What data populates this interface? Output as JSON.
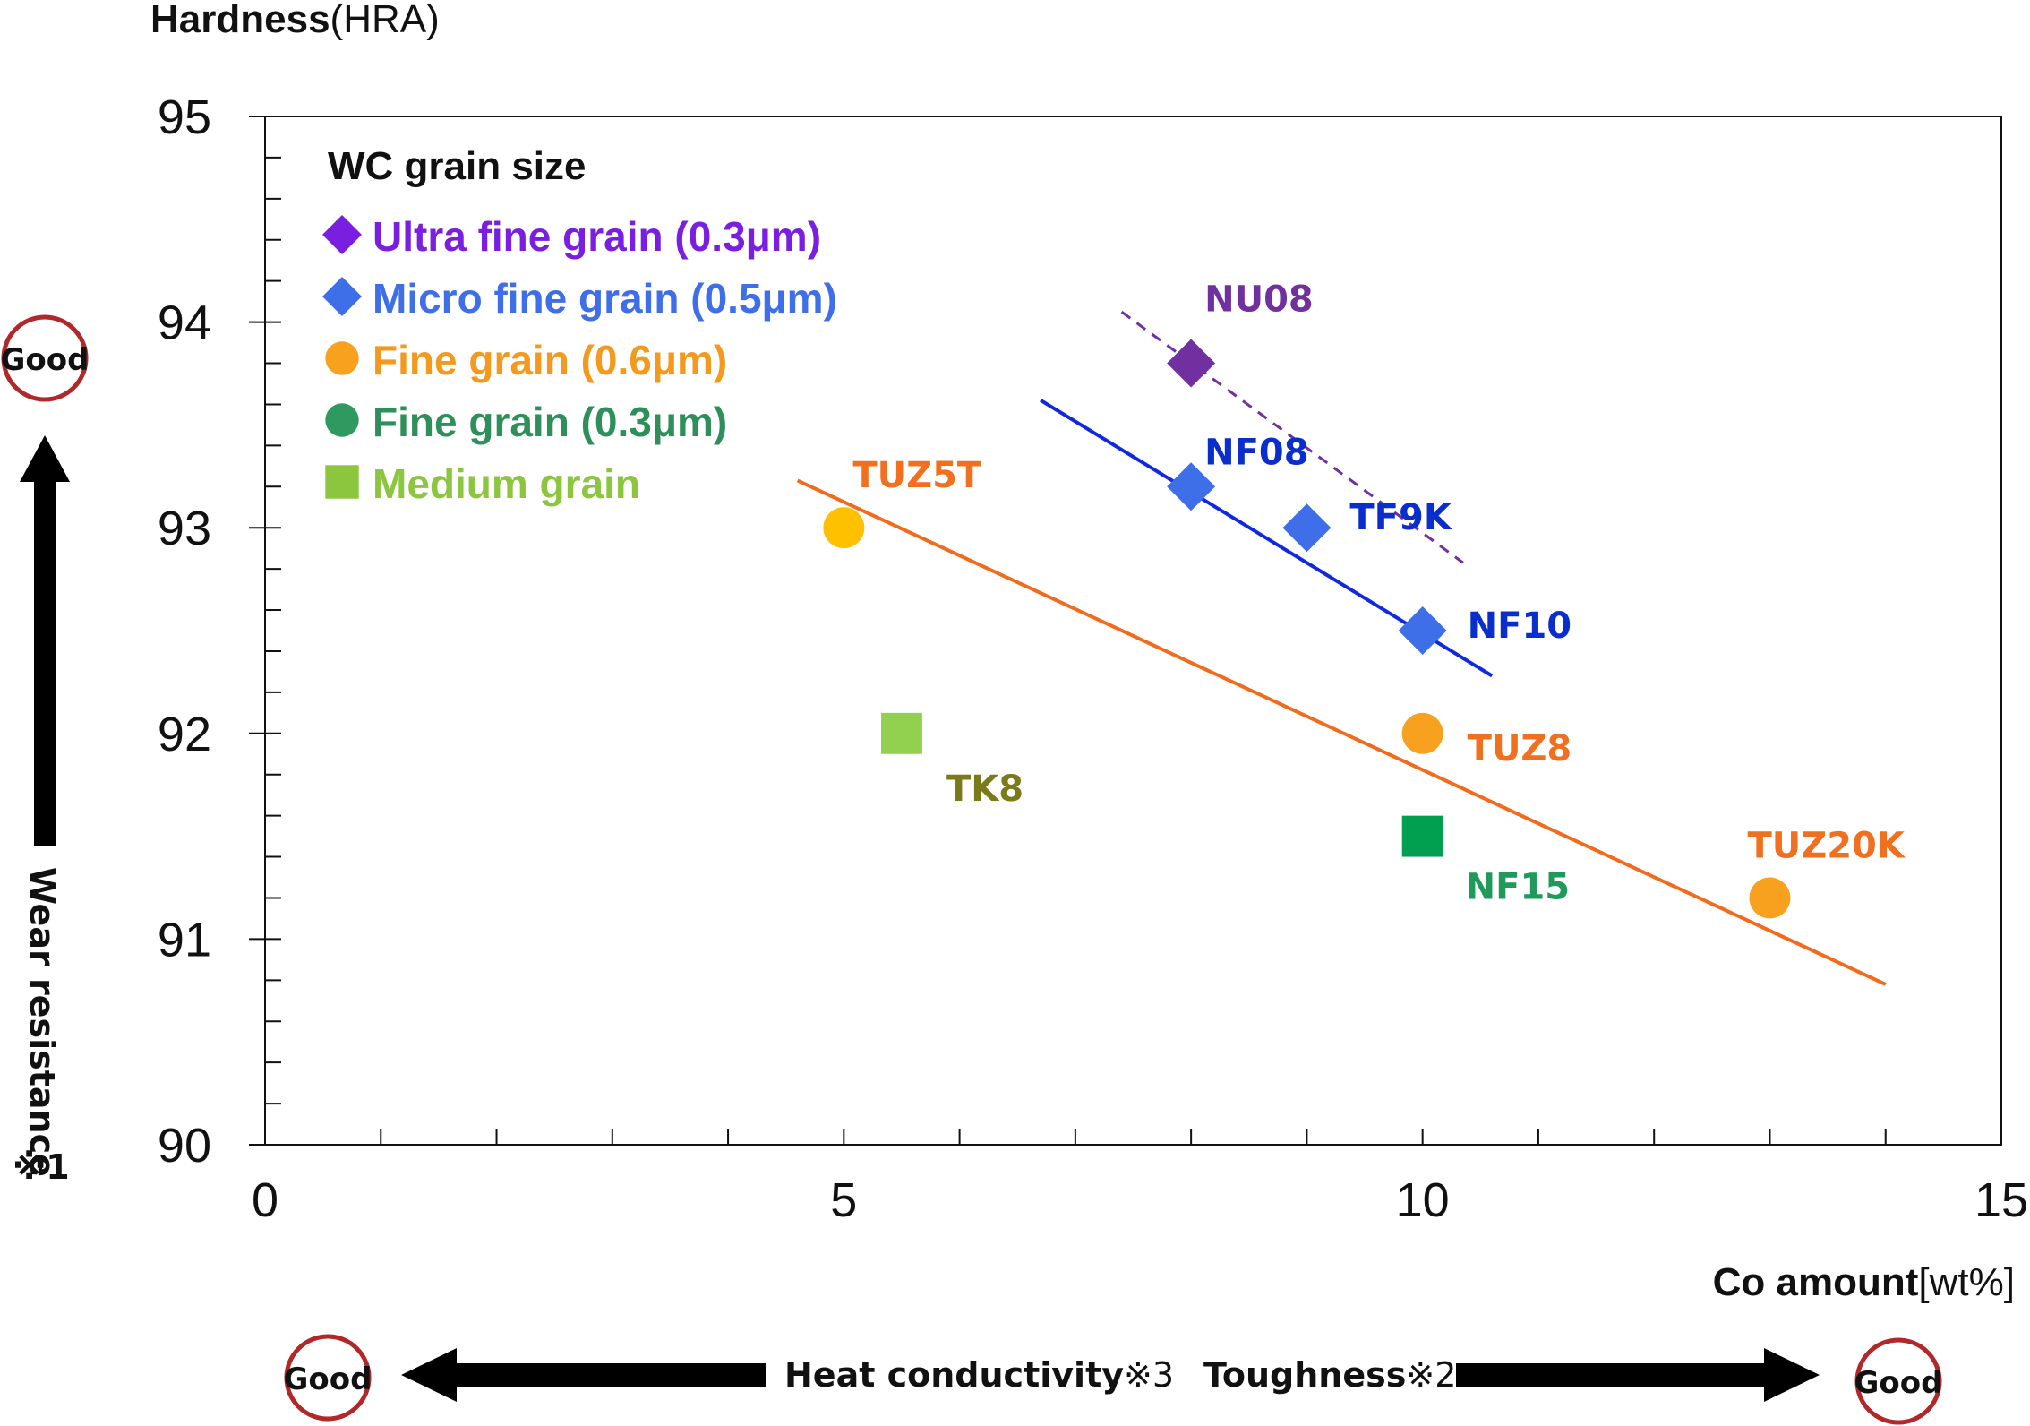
{
  "chart_data": {
    "type": "scatter",
    "ylabel": "Hardness",
    "ylabel_unit": "(HRA)",
    "xlabel": "Co amount",
    "xlabel_unit": "[wt%]",
    "xlim": [
      0,
      15
    ],
    "ylim": [
      90,
      95
    ],
    "x_ticks": [
      0,
      5,
      10,
      15
    ],
    "y_ticks": [
      90,
      91,
      92,
      93,
      94,
      95
    ],
    "grid": false,
    "legend": {
      "title": "WC grain size",
      "placement": "top-left",
      "entries": [
        {
          "label": "Ultra fine grain",
          "suffix": "(0.3μm)",
          "marker": "diamond",
          "color": "#7a1fe0",
          "marker_color": "#7a1fe0"
        },
        {
          "label": "Micro fine grain",
          "suffix": "(0.5μm)",
          "marker": "diamond",
          "color": "#3f6fe8",
          "marker_color": "#3f6fe8"
        },
        {
          "label": "Fine grain",
          "suffix": "(0.6μm)",
          "marker": "circle",
          "color": "#f39a1e",
          "marker_color": "#f7a11e"
        },
        {
          "label": "Fine grain",
          "suffix": "(0.3μm)",
          "marker": "circle",
          "color": "#2e8f5a",
          "marker_color": "#2e9a60"
        },
        {
          "label": "Medium grain",
          "suffix": "",
          "marker": "square",
          "color": "#8cc63f",
          "marker_color": "#8cc63f"
        }
      ]
    },
    "points": [
      {
        "label": "NU08",
        "x": 8,
        "y": 93.8,
        "marker": "diamond",
        "color": "#7030a0",
        "label_color": "#7030a0"
      },
      {
        "label": "NF08",
        "x": 8,
        "y": 93.2,
        "marker": "diamond",
        "color": "#3f6fe8",
        "label_color": "#0a2ecc"
      },
      {
        "label": "TF9K",
        "x": 9,
        "y": 93.0,
        "marker": "diamond",
        "color": "#3f6fe8",
        "label_color": "#0a2ecc"
      },
      {
        "label": "NF10",
        "x": 10,
        "y": 92.5,
        "marker": "diamond",
        "color": "#3f6fe8",
        "label_color": "#0a2ecc"
      },
      {
        "label": "TUZ5T",
        "x": 5,
        "y": 93.0,
        "marker": "circle",
        "color": "#ffc000",
        "label_color": "#f07020"
      },
      {
        "label": "TUZ8",
        "x": 10,
        "y": 92.0,
        "marker": "circle",
        "color": "#f7a11e",
        "label_color": "#f07020"
      },
      {
        "label": "TUZ20K",
        "x": 13,
        "y": 91.2,
        "marker": "circle",
        "color": "#f7a11e",
        "label_color": "#f07020"
      },
      {
        "label": "TK8",
        "x": 5.5,
        "y": 92.0,
        "marker": "square",
        "color": "#92d050",
        "label_color": "#7a7a1a"
      },
      {
        "label": "NF15",
        "x": 10,
        "y": 91.5,
        "marker": "square",
        "color": "#00a050",
        "label_color": "#1f9a5a"
      }
    ],
    "trend_lines": [
      {
        "series": "Ultra fine grain",
        "x": [
          7.4,
          10.35
        ],
        "y": [
          94.05,
          92.83
        ],
        "color": "#7030a0",
        "style": "dashed"
      },
      {
        "series": "Micro fine grain",
        "x": [
          6.7,
          10.6
        ],
        "y": [
          93.62,
          92.28
        ],
        "color": "#1028e0",
        "style": "solid"
      },
      {
        "series": "Fine grain (0.6μm)",
        "x": [
          4.6,
          14.0
        ],
        "y": [
          93.23,
          90.78
        ],
        "color": "#f26a1b",
        "style": "solid"
      }
    ]
  },
  "annotations": {
    "wear_resistance": "Wear resistance",
    "wear_note": "※1",
    "heat_conductivity": "Heat conductivity",
    "heat_note": "※3",
    "toughness": "Toughness",
    "toughness_note": "※2",
    "good": "Good",
    "good_ring_color": "#b0282a"
  }
}
